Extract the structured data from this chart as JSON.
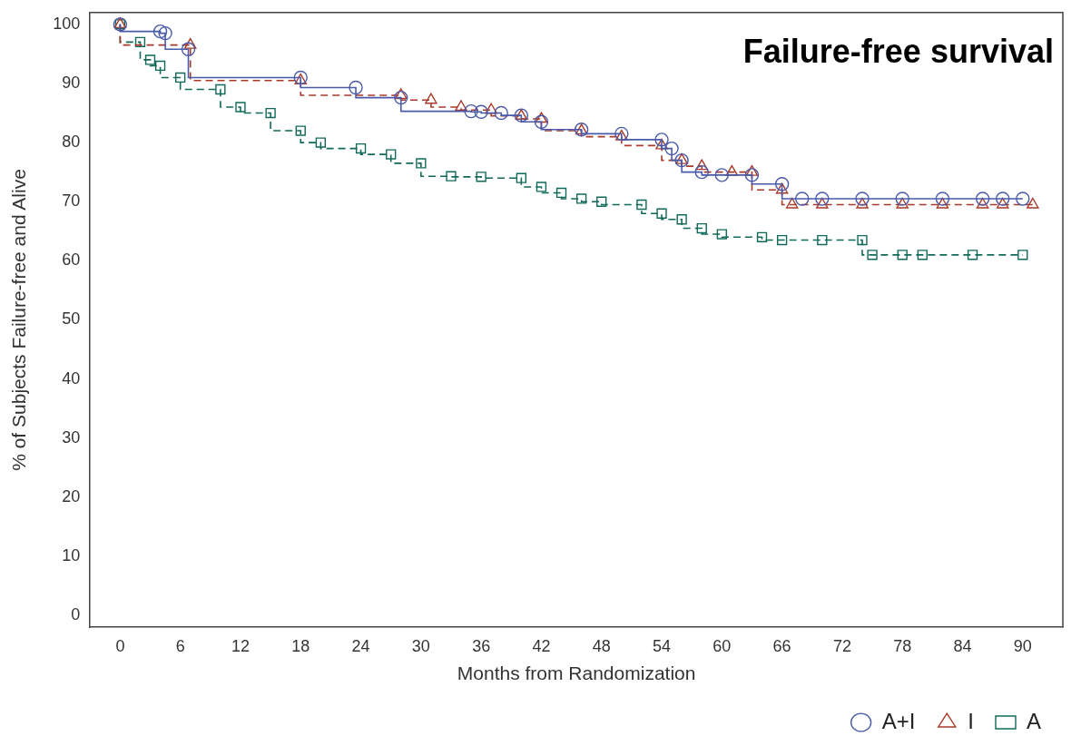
{
  "chart_data": {
    "type": "step",
    "title": "Failure-free survival",
    "xlabel": "Months from Randomization",
    "ylabel": "% of Subjects Failure-free and Alive",
    "xlim": [
      -3,
      94
    ],
    "ylim": [
      -2,
      102
    ],
    "xticks": [
      0,
      6,
      12,
      18,
      24,
      30,
      36,
      42,
      48,
      54,
      60,
      66,
      72,
      78,
      84,
      90
    ],
    "yticks": [
      0,
      10,
      20,
      30,
      40,
      50,
      60,
      70,
      80,
      90,
      100
    ],
    "grid": false,
    "legend": "bottom right",
    "series": [
      {
        "name": "A+I",
        "color": "#4a5aa8",
        "marker": "circle",
        "line_style": "solid",
        "x": [
          0,
          4,
          4.5,
          6.8,
          18,
          23.5,
          28,
          35,
          36,
          38,
          40,
          42,
          46,
          50,
          54,
          55,
          56,
          58,
          60,
          63,
          66,
          68,
          70,
          74,
          78,
          82,
          86,
          88,
          90
        ],
        "values": [
          100,
          98.8,
          98.5,
          95.8,
          91,
          89.3,
          87.6,
          85.3,
          85.2,
          85,
          84.6,
          83.5,
          82.2,
          81.5,
          80.5,
          79,
          77,
          75,
          74.5,
          74.5,
          73,
          70.5,
          70.5,
          70.5,
          70.5,
          70.5,
          70.5,
          70.5,
          70.5
        ]
      },
      {
        "name": "I",
        "color": "#a83a2a",
        "marker": "triangle",
        "line_style": "dashed",
        "x": [
          0,
          7,
          18,
          28,
          31,
          34,
          37,
          40,
          42,
          46,
          50,
          54,
          56,
          58,
          61,
          63,
          66,
          67,
          70,
          74,
          78,
          82,
          86,
          88,
          91
        ],
        "values": [
          100,
          96.5,
          90.5,
          88,
          87.2,
          86,
          85.5,
          84.5,
          84,
          82,
          81,
          79.5,
          77,
          76,
          75,
          75,
          72,
          69.5,
          69.5,
          69.5,
          69.5,
          69.5,
          69.5,
          69.5,
          69.5
        ]
      },
      {
        "name": "A",
        "color": "#11695a",
        "marker": "square",
        "line_style": "dashed",
        "x": [
          0,
          2,
          3,
          4,
          6,
          10,
          12,
          15,
          18,
          20,
          24,
          27,
          30,
          33,
          36,
          40,
          42,
          44,
          46,
          48,
          52,
          54,
          56,
          58,
          60,
          64,
          66,
          70,
          74,
          75,
          78,
          80,
          85,
          90
        ],
        "values": [
          100,
          97,
          94,
          93,
          91,
          89,
          86,
          85,
          82,
          80,
          79,
          78,
          76.5,
          74.3,
          74.2,
          74,
          72.5,
          71.5,
          70.5,
          70,
          69.5,
          68,
          67,
          65.5,
          64.5,
          64,
          63.5,
          63.5,
          63.5,
          61,
          61,
          61,
          61,
          61
        ]
      }
    ]
  }
}
